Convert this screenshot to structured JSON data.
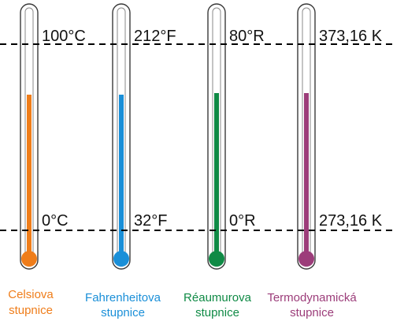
{
  "thermometers": [
    {
      "color": "#ef7d1a",
      "top_label": "100°C",
      "bottom_label": "0°C",
      "caption_line1": "Celsiova",
      "caption_line2": "stupnice"
    },
    {
      "color": "#1a8fd8",
      "top_label": "212°F",
      "bottom_label": "32°F",
      "caption_line1": "Fahrenheitova",
      "caption_line2": "stupnice"
    },
    {
      "color": "#0f8a45",
      "top_label": "80°R",
      "bottom_label": "0°R",
      "caption_line1": "Réaumurova",
      "caption_line2": "stupnice"
    },
    {
      "color": "#9c3d7a",
      "top_label": "373,16 K",
      "bottom_label": "273,16 K",
      "caption_line1": "Termodynamická",
      "caption_line2": "stupnice"
    }
  ]
}
